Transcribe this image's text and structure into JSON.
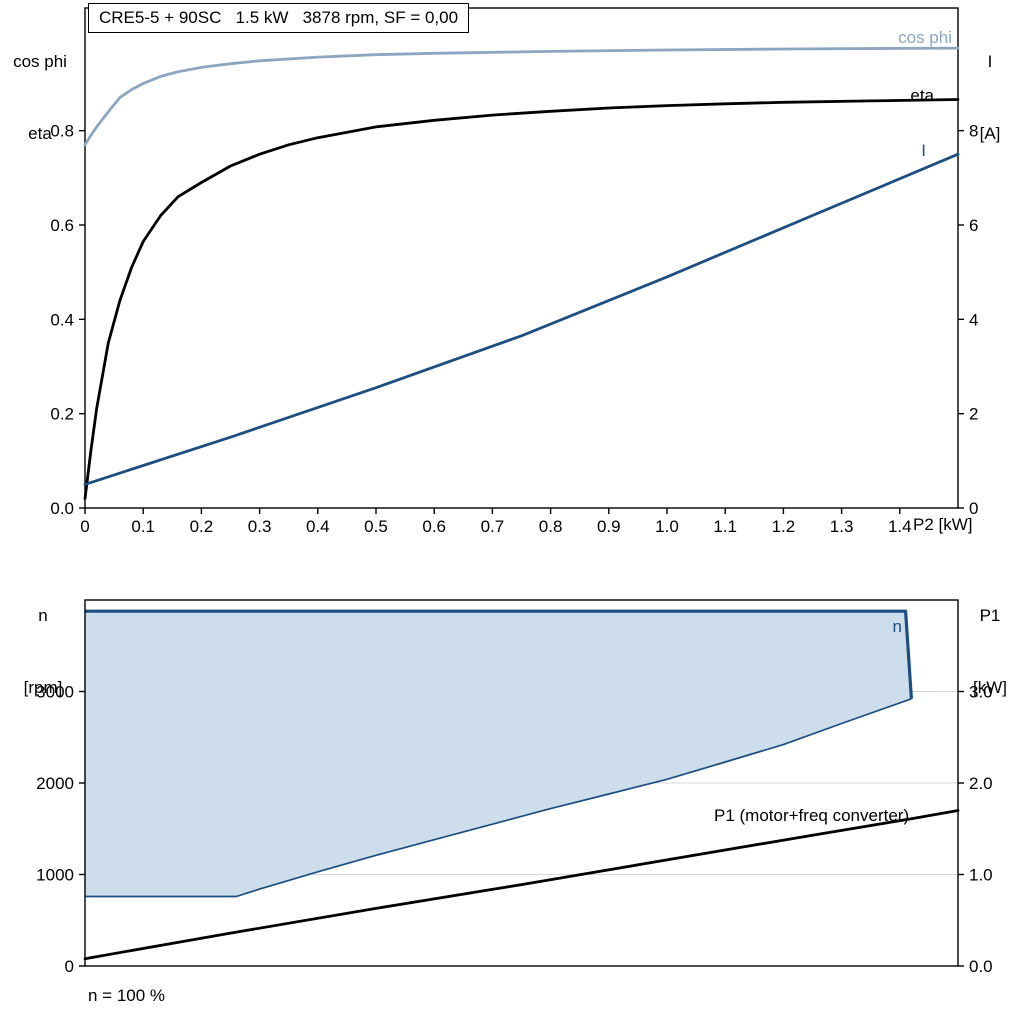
{
  "title_box": {
    "text": "CRE5-5 + 90SC   1.5 kW   3878 rpm, SF = 0,00"
  },
  "top_chart": {
    "left_axis_title_line1": "cos phi",
    "left_axis_title_line2": "eta",
    "right_axis_title_line1": "I",
    "right_axis_title_line2": "[A]",
    "x_axis_title": "P2 [kW]",
    "series_labels": {
      "cos_phi": "cos phi",
      "eta": "eta",
      "current": "I"
    }
  },
  "bottom_chart": {
    "left_axis_title_line1": "n",
    "left_axis_title_line2": "[rpm]",
    "right_axis_title_line1": "P1",
    "right_axis_title_line2": "[kW]",
    "envelope_label": "n",
    "p1_line_label": "P1 (motor+freq converter)",
    "footnote": "n = 100 %"
  },
  "colors": {
    "cos_phi_curve": "#8CA5C0",
    "eta_curve": "#000000",
    "current_curve": "#1C4E80",
    "envelope_fill": "#CEDDEB",
    "envelope_stroke": "#1C4E80",
    "p1_curve": "#000000",
    "axis": "#000000",
    "grid": "#D8D8D8"
  },
  "chart_data": [
    {
      "type": "line",
      "title": "CRE5-5 + 90SC   1.5 kW   3878 rpm, SF = 0,00",
      "xlabel": "P2 [kW]",
      "ylabel_left": "cos phi / eta",
      "ylabel_right": "I [A]",
      "xlim": [
        0,
        1.5
      ],
      "ylim_left": [
        0,
        1.06
      ],
      "ylim_right": [
        0,
        10.6
      ],
      "grid": false,
      "x_tick_values": [
        0,
        0.1,
        0.2,
        0.3,
        0.4,
        0.5,
        0.6,
        0.7,
        0.8,
        0.9,
        1.0,
        1.1,
        1.2,
        1.3,
        1.4
      ],
      "x_tick_labels": [
        "0",
        "0.1",
        "0.2",
        "0.3",
        "0.4",
        "0.5",
        "0.6",
        "0.7",
        "0.8",
        "0.9",
        "1.0",
        "1.1",
        "1.2",
        "1.3",
        "1.4"
      ],
      "y_left_tick_values": [
        0,
        0.2,
        0.4,
        0.6,
        0.8
      ],
      "y_left_tick_labels": [
        "0.0",
        "0.2",
        "0.4",
        "0.6",
        "0.8"
      ],
      "y_right_tick_values": [
        0,
        2,
        4,
        6,
        8
      ],
      "y_right_tick_labels": [
        "0",
        "2",
        "4",
        "6",
        "8"
      ],
      "series": [
        {
          "name": "cos phi",
          "axis": "left",
          "color_key": "cos_phi_curve",
          "width": 2.8,
          "x": [
            0,
            0.01,
            0.02,
            0.04,
            0.06,
            0.08,
            0.1,
            0.13,
            0.16,
            0.2,
            0.25,
            0.3,
            0.4,
            0.5,
            0.6,
            0.8,
            1.0,
            1.2,
            1.5
          ],
          "y": [
            0.77,
            0.79,
            0.808,
            0.84,
            0.87,
            0.887,
            0.9,
            0.915,
            0.925,
            0.934,
            0.942,
            0.948,
            0.956,
            0.961,
            0.964,
            0.968,
            0.971,
            0.973,
            0.975
          ]
        },
        {
          "name": "eta",
          "axis": "left",
          "color_key": "eta_curve",
          "width": 2.8,
          "x": [
            0,
            0.01,
            0.02,
            0.04,
            0.06,
            0.08,
            0.1,
            0.13,
            0.16,
            0.2,
            0.25,
            0.3,
            0.35,
            0.4,
            0.5,
            0.6,
            0.7,
            0.8,
            0.9,
            1.0,
            1.1,
            1.2,
            1.35,
            1.5
          ],
          "y": [
            0.02,
            0.12,
            0.21,
            0.35,
            0.44,
            0.51,
            0.565,
            0.62,
            0.66,
            0.69,
            0.725,
            0.75,
            0.77,
            0.785,
            0.808,
            0.822,
            0.833,
            0.841,
            0.848,
            0.853,
            0.857,
            0.86,
            0.863,
            0.866
          ]
        },
        {
          "name": "I",
          "axis": "right",
          "color_key": "current_curve",
          "width": 2.8,
          "x": [
            0,
            0.25,
            0.5,
            0.75,
            1.0,
            1.25,
            1.5
          ],
          "y": [
            0.5,
            1.5,
            2.55,
            3.65,
            4.9,
            6.2,
            7.5
          ]
        }
      ]
    },
    {
      "type": "area-line",
      "title": "",
      "xlabel": "",
      "x_note": "n = 100 %",
      "ylabel_left": "n [rpm]",
      "ylabel_right": "P1 [kW]",
      "xlim": [
        0,
        1.5
      ],
      "ylim_left": [
        0,
        4000
      ],
      "ylim_right": [
        0,
        4.0
      ],
      "grid": true,
      "y_left_tick_values": [
        0,
        1000,
        2000,
        3000
      ],
      "y_left_tick_labels": [
        "0",
        "1000",
        "2000",
        "3000"
      ],
      "y_right_tick_values": [
        0,
        1,
        2,
        3
      ],
      "y_right_tick_labels": [
        "0.0",
        "1.0",
        "2.0",
        "3.0"
      ],
      "envelope": {
        "name": "n",
        "max_speed_rpm": 3878,
        "upper": {
          "x": [
            0,
            1.41,
            1.42
          ],
          "n": [
            3878,
            3878,
            2920
          ]
        },
        "lower": {
          "x": [
            0,
            0.26,
            0.3,
            0.4,
            0.5,
            0.6,
            0.7,
            0.8,
            0.9,
            1.0,
            1.1,
            1.2,
            1.3,
            1.42
          ],
          "n": [
            760,
            760,
            840,
            1030,
            1210,
            1380,
            1550,
            1720,
            1880,
            2040,
            2230,
            2420,
            2650,
            2920
          ]
        }
      },
      "series": [
        {
          "name": "P1 (motor+freq converter)",
          "axis": "right",
          "color_key": "p1_curve",
          "width": 2.8,
          "x": [
            0,
            0.25,
            0.5,
            0.75,
            1.0,
            1.25,
            1.42,
            1.5
          ],
          "y": [
            0.08,
            0.36,
            0.63,
            0.89,
            1.16,
            1.43,
            1.61,
            1.7
          ]
        }
      ]
    }
  ]
}
